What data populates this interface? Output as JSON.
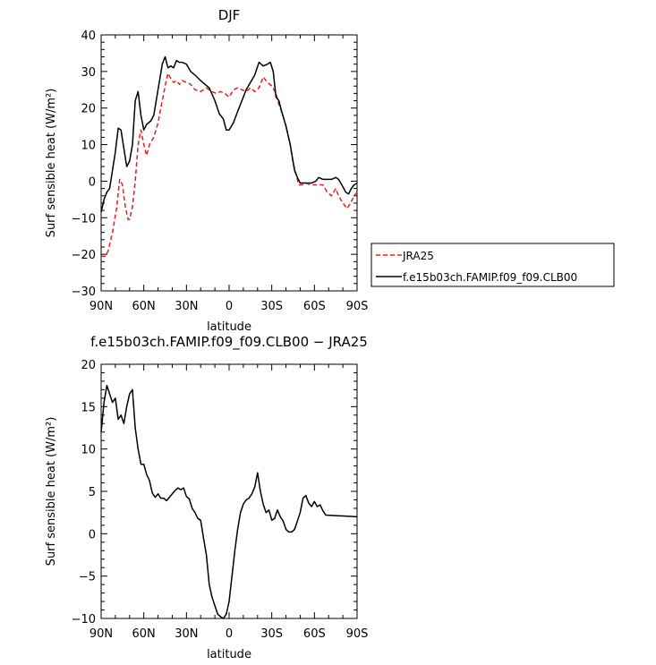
{
  "chart_data": [
    {
      "type": "line",
      "title": "DJF",
      "xlabel": "latitude",
      "ylabel": "Surf sensible heat (W/m²)",
      "xlim": [
        90,
        -90
      ],
      "ylim": [
        -30,
        40
      ],
      "x_ticks": [
        {
          "v": 90,
          "label": "90N"
        },
        {
          "v": 60,
          "label": "60N"
        },
        {
          "v": 30,
          "label": "30N"
        },
        {
          "v": 0,
          "label": "0"
        },
        {
          "v": -30,
          "label": "30S"
        },
        {
          "v": -60,
          "label": "60S"
        },
        {
          "v": -90,
          "label": "90S"
        }
      ],
      "y_ticks": [
        -30,
        -20,
        -10,
        0,
        10,
        20,
        30,
        40
      ],
      "legend_position": "right",
      "series": [
        {
          "name": "JRA25",
          "color": "#e8201f",
          "style": "dashed",
          "points": [
            [
              90,
              -20.5
            ],
            [
              87,
              -20.5
            ],
            [
              85,
              -19
            ],
            [
              82,
              -14
            ],
            [
              79,
              -7
            ],
            [
              77,
              0.5
            ],
            [
              75,
              -1
            ],
            [
              73,
              -7
            ],
            [
              71,
              -10.5
            ],
            [
              70,
              -10.5
            ],
            [
              68,
              -7
            ],
            [
              66,
              0
            ],
            [
              64,
              10
            ],
            [
              62,
              14
            ],
            [
              60,
              10
            ],
            [
              58,
              7
            ],
            [
              56,
              10
            ],
            [
              53,
              12
            ],
            [
              50,
              16
            ],
            [
              47,
              22
            ],
            [
              45,
              26
            ],
            [
              43,
              29.5
            ],
            [
              41,
              28
            ],
            [
              39,
              27
            ],
            [
              37,
              27.5
            ],
            [
              35,
              26.5
            ],
            [
              33,
              27.5
            ],
            [
              30,
              27
            ],
            [
              27,
              26.5
            ],
            [
              24,
              25
            ],
            [
              20,
              24.5
            ],
            [
              16,
              25.5
            ],
            [
              12,
              24.5
            ],
            [
              9,
              24
            ],
            [
              6,
              24.5
            ],
            [
              3,
              24
            ],
            [
              0,
              23
            ],
            [
              -3,
              25
            ],
            [
              -6,
              25.5
            ],
            [
              -9,
              25
            ],
            [
              -12,
              24.5
            ],
            [
              -15,
              25.5
            ],
            [
              -18,
              24.5
            ],
            [
              -21,
              25.5
            ],
            [
              -24,
              28.5
            ],
            [
              -27,
              27
            ],
            [
              -30,
              26
            ],
            [
              -33,
              24
            ],
            [
              -35,
              21
            ],
            [
              -37,
              19
            ],
            [
              -40,
              15
            ],
            [
              -43,
              10
            ],
            [
              -45,
              5
            ],
            [
              -47,
              2
            ],
            [
              -49,
              -1
            ],
            [
              -51,
              -1
            ],
            [
              -54,
              -0.5
            ],
            [
              -57,
              -1
            ],
            [
              -60,
              -1
            ],
            [
              -63,
              -1
            ],
            [
              -66,
              -1
            ],
            [
              -69,
              -3
            ],
            [
              -72,
              -4
            ],
            [
              -75,
              -2
            ],
            [
              -77,
              -4
            ],
            [
              -80,
              -6
            ],
            [
              -83,
              -7.5
            ],
            [
              -86,
              -5.5
            ],
            [
              -88,
              -4
            ],
            [
              -90,
              -3
            ]
          ]
        },
        {
          "name": "f.e15b03ch.FAMIP.f09_f09.CLB00",
          "color": "#000000",
          "style": "solid",
          "points": [
            [
              90,
              -8.5
            ],
            [
              88,
              -5
            ],
            [
              86,
              -3
            ],
            [
              84,
              -2
            ],
            [
              82,
              3
            ],
            [
              80,
              8
            ],
            [
              78,
              14.5
            ],
            [
              76,
              14
            ],
            [
              74,
              9
            ],
            [
              72,
              4
            ],
            [
              70,
              5.5
            ],
            [
              68,
              10
            ],
            [
              66,
              22
            ],
            [
              64,
              24.5
            ],
            [
              62,
              18
            ],
            [
              60,
              14
            ],
            [
              58,
              15.5
            ],
            [
              55,
              16.5
            ],
            [
              53,
              18
            ],
            [
              50,
              25
            ],
            [
              47,
              32
            ],
            [
              45,
              34
            ],
            [
              43,
              31
            ],
            [
              41,
              31.5
            ],
            [
              39,
              31
            ],
            [
              37,
              33
            ],
            [
              35,
              32.5
            ],
            [
              33,
              32.5
            ],
            [
              30,
              32
            ],
            [
              27,
              30
            ],
            [
              24,
              29
            ],
            [
              20,
              27.5
            ],
            [
              17,
              26.5
            ],
            [
              14,
              25.5
            ],
            [
              10,
              22
            ],
            [
              7,
              18.5
            ],
            [
              4,
              17
            ],
            [
              2,
              14
            ],
            [
              0,
              14
            ],
            [
              -3,
              16
            ],
            [
              -6,
              19
            ],
            [
              -9,
              22
            ],
            [
              -12,
              25
            ],
            [
              -15,
              27
            ],
            [
              -18,
              29
            ],
            [
              -21,
              32.5
            ],
            [
              -24,
              31.5
            ],
            [
              -27,
              32
            ],
            [
              -29,
              32.5
            ],
            [
              -31,
              30
            ],
            [
              -33,
              23
            ],
            [
              -35,
              22
            ],
            [
              -37,
              19
            ],
            [
              -40,
              15
            ],
            [
              -43,
              10
            ],
            [
              -46,
              3
            ],
            [
              -48,
              1
            ],
            [
              -50,
              -0.5
            ],
            [
              -52,
              -0.5
            ],
            [
              -55,
              -0.5
            ],
            [
              -58,
              -0.5
            ],
            [
              -61,
              0
            ],
            [
              -63,
              1
            ],
            [
              -66,
              0.5
            ],
            [
              -69,
              0.5
            ],
            [
              -72,
              0.5
            ],
            [
              -75,
              1
            ],
            [
              -77,
              0.5
            ],
            [
              -80,
              -1.5
            ],
            [
              -82,
              -3
            ],
            [
              -84,
              -3.5
            ],
            [
              -86,
              -2
            ],
            [
              -88,
              -1
            ],
            [
              -90,
              -0.5
            ]
          ]
        }
      ]
    },
    {
      "type": "line",
      "title": "f.e15b03ch.FAMIP.f09_f09.CLB00 − JRA25",
      "xlabel": "latitude",
      "ylabel": "Surf sensible heat (W/m²)",
      "xlim": [
        90,
        -90
      ],
      "ylim": [
        -10,
        20
      ],
      "x_ticks": [
        {
          "v": 90,
          "label": "90N"
        },
        {
          "v": 60,
          "label": "60N"
        },
        {
          "v": 30,
          "label": "30N"
        },
        {
          "v": 0,
          "label": "0"
        },
        {
          "v": -30,
          "label": "30S"
        },
        {
          "v": -60,
          "label": "60S"
        },
        {
          "v": -90,
          "label": "90S"
        }
      ],
      "y_ticks": [
        -10,
        -5,
        0,
        5,
        10,
        15,
        20
      ],
      "series": [
        {
          "color": "#000000",
          "style": "solid",
          "points": [
            [
              90,
              12
            ],
            [
              88,
              15.5
            ],
            [
              86,
              17.5
            ],
            [
              84,
              16.5
            ],
            [
              82,
              15.5
            ],
            [
              80,
              16
            ],
            [
              78,
              13.5
            ],
            [
              76,
              14
            ],
            [
              74,
              13
            ],
            [
              72,
              15
            ],
            [
              70,
              16.5
            ],
            [
              68,
              17
            ],
            [
              66,
              12.5
            ],
            [
              64,
              10
            ],
            [
              62,
              8.2
            ],
            [
              60,
              8.2
            ],
            [
              58,
              7
            ],
            [
              56,
              6.3
            ],
            [
              54,
              4.8
            ],
            [
              52,
              4.3
            ],
            [
              50,
              4.7
            ],
            [
              48,
              4.2
            ],
            [
              46,
              4.2
            ],
            [
              44,
              3.9
            ],
            [
              42,
              4.3
            ],
            [
              40,
              4.7
            ],
            [
              38,
              5.1
            ],
            [
              36,
              5.4
            ],
            [
              34,
              5.2
            ],
            [
              32,
              5.4
            ],
            [
              30,
              4.4
            ],
            [
              28,
              4.1
            ],
            [
              26,
              3
            ],
            [
              24,
              2.5
            ],
            [
              22,
              1.8
            ],
            [
              20,
              1.6
            ],
            [
              18,
              -0.5
            ],
            [
              16,
              -2.5
            ],
            [
              14,
              -6
            ],
            [
              12,
              -7.5
            ],
            [
              10,
              -8.5
            ],
            [
              8,
              -9.5
            ],
            [
              6,
              -9.8
            ],
            [
              4,
              -10
            ],
            [
              2,
              -9.5
            ],
            [
              0,
              -8
            ],
            [
              -2,
              -5
            ],
            [
              -4,
              -2
            ],
            [
              -6,
              0.5
            ],
            [
              -8,
              2.5
            ],
            [
              -10,
              3.5
            ],
            [
              -12,
              4
            ],
            [
              -14,
              4.2
            ],
            [
              -16,
              4.7
            ],
            [
              -18,
              5.5
            ],
            [
              -20,
              7.2
            ],
            [
              -22,
              5
            ],
            [
              -24,
              3.5
            ],
            [
              -26,
              2.5
            ],
            [
              -28,
              2.8
            ],
            [
              -30,
              1.6
            ],
            [
              -32,
              1.8
            ],
            [
              -34,
              2.8
            ],
            [
              -36,
              2
            ],
            [
              -38,
              1.5
            ],
            [
              -40,
              0.5
            ],
            [
              -42,
              0.2
            ],
            [
              -44,
              0.2
            ],
            [
              -46,
              0.5
            ],
            [
              -48,
              1.5
            ],
            [
              -50,
              2.5
            ],
            [
              -52,
              4.2
            ],
            [
              -54,
              4.5
            ],
            [
              -56,
              3.6
            ],
            [
              -58,
              3.2
            ],
            [
              -60,
              3.8
            ],
            [
              -62,
              3.2
            ],
            [
              -64,
              3.4
            ],
            [
              -66,
              2.7
            ],
            [
              -68,
              2.2
            ],
            [
              -90,
              2.0
            ]
          ]
        }
      ]
    }
  ]
}
